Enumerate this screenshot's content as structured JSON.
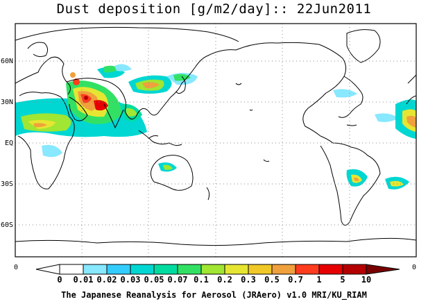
{
  "title": "Dust deposition [g/m2/day]:: 22Jun2011",
  "lat_labels": [
    "60N",
    "30N",
    "EQ",
    "30S",
    "60S"
  ],
  "lon_edge_labels": [
    "0",
    "0"
  ],
  "colorbar": {
    "labels": [
      "0",
      "0.01",
      "0.02",
      "0.03",
      "0.05",
      "0.07",
      "0.1",
      "0.2",
      "0.3",
      "0.5",
      "0.7",
      "1",
      "5",
      "10"
    ],
    "colors": [
      "#ffffff",
      "#ffffff",
      "#87e8ff",
      "#33ccff",
      "#00d7d2",
      "#00dca0",
      "#32e164",
      "#a0e632",
      "#e6e632",
      "#f0c828",
      "#f0a03c",
      "#ff3c1e",
      "#e60000",
      "#b40000",
      "#780000"
    ]
  },
  "footer": "The Japanese Reanalysis for Aerosol (JRAero) v1.0 MRI/KU_RIAM"
}
